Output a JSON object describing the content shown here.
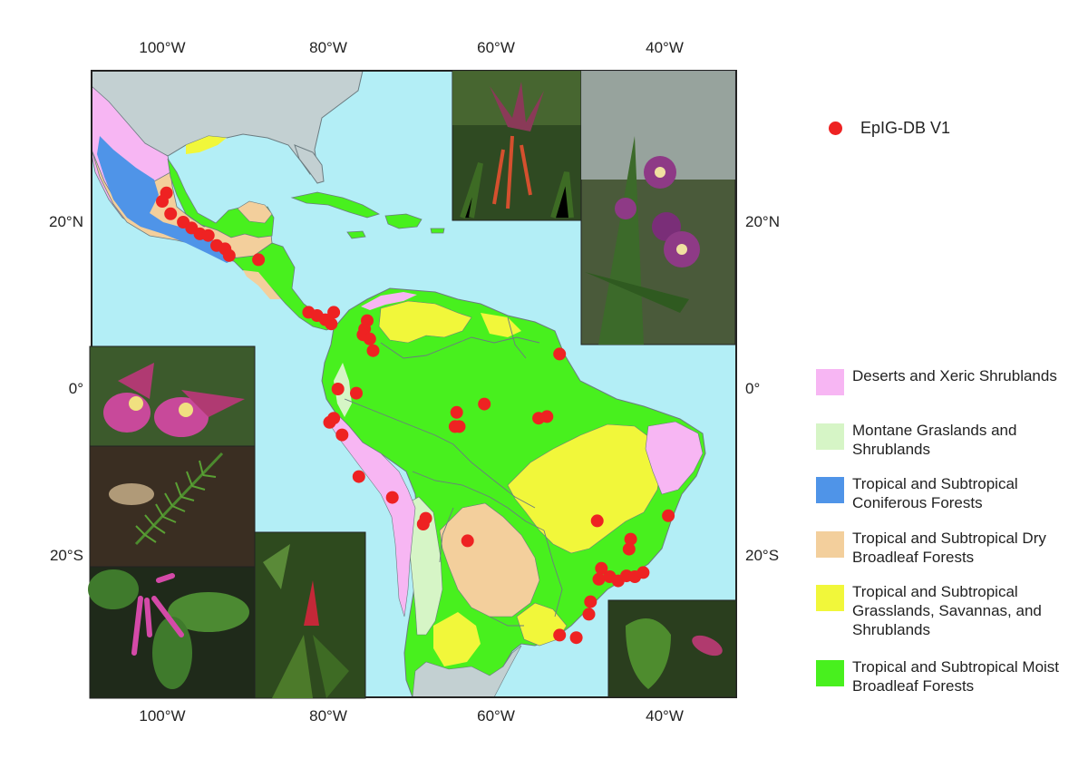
{
  "axes": {
    "top_ticks": [
      "100°W",
      "80°W",
      "60°W",
      "40°W"
    ],
    "bottom_ticks": [
      "100°W",
      "80°W",
      "60°W",
      "40°W"
    ],
    "left_ticks": [
      "20°N",
      "0°",
      "20°S"
    ],
    "right_ticks": [
      "20°N",
      "0°",
      "20°S"
    ]
  },
  "legend": {
    "points_label": "EpIG-DB V1",
    "points_color": "#ee2222",
    "biomes": [
      {
        "label": "Deserts and Xeric Shrublands",
        "color": "#f7b6f3"
      },
      {
        "label": "Montane Graslands and Shrublands",
        "color": "#d6f5c6"
      },
      {
        "label": "Tropical and Subtropical Coniferous Forests",
        "color": "#4f94e8"
      },
      {
        "label": "Tropical and Subtropical Dry Broadleaf Forests",
        "color": "#f3cf9c"
      },
      {
        "label": "Tropical and Subtropical Grasslands, Savannas, and Shrublands",
        "color": "#f1f73a"
      },
      {
        "label": "Tropical and Subtropical Moist Broadleaf Forests",
        "color": "#48f01e"
      }
    ]
  },
  "map_colors": {
    "ocean": "#b3eef6",
    "land_other": "#c3d0d2",
    "borders": "#6b7b80"
  },
  "occurrence_points": [
    [
      -99.5,
      23.5
    ],
    [
      -100,
      22.5
    ],
    [
      -99,
      21
    ],
    [
      -97.5,
      20
    ],
    [
      -96.5,
      19.3
    ],
    [
      -95.5,
      18.6
    ],
    [
      -94.5,
      18.4
    ],
    [
      -93.5,
      17.2
    ],
    [
      -92.5,
      16.8
    ],
    [
      -92,
      16
    ],
    [
      -88.5,
      15.5
    ],
    [
      -82.5,
      9.2
    ],
    [
      -81.5,
      8.8
    ],
    [
      -80.5,
      8.3
    ],
    [
      -79.5,
      9.2
    ],
    [
      -79.8,
      7.8
    ],
    [
      -75.5,
      8.2
    ],
    [
      -75.8,
      7.2
    ],
    [
      -76,
      6.5
    ],
    [
      -75.2,
      6
    ],
    [
      -74.8,
      4.6
    ],
    [
      -79,
      0
    ],
    [
      -76.8,
      -0.5
    ],
    [
      -79.5,
      -3.5
    ],
    [
      -80,
      -4
    ],
    [
      -78.5,
      -5.5
    ],
    [
      -76.5,
      -10.5
    ],
    [
      -72.5,
      -13
    ],
    [
      -68.5,
      -15.5
    ],
    [
      -68.8,
      -16.2
    ],
    [
      -63.5,
      -18.2
    ],
    [
      -64.8,
      -2.8
    ],
    [
      -61.5,
      -1.8
    ],
    [
      -65,
      -4.5
    ],
    [
      -64.5,
      -4.5
    ],
    [
      -55,
      -3.5
    ],
    [
      -54,
      -3.3
    ],
    [
      -52.5,
      4.2
    ],
    [
      -48,
      -15.8
    ],
    [
      -39.5,
      -15.2
    ],
    [
      -44,
      -18
    ],
    [
      -44.2,
      -19.2
    ],
    [
      -47.5,
      -21.5
    ],
    [
      -47.8,
      -22.8
    ],
    [
      -46.5,
      -22.5
    ],
    [
      -45.5,
      -23
    ],
    [
      -44.5,
      -22.4
    ],
    [
      -43.5,
      -22.5
    ],
    [
      -42.5,
      -22
    ],
    [
      -48.8,
      -25.5
    ],
    [
      -49,
      -27
    ],
    [
      -52.5,
      -29.5
    ],
    [
      -50.5,
      -29.8
    ]
  ]
}
